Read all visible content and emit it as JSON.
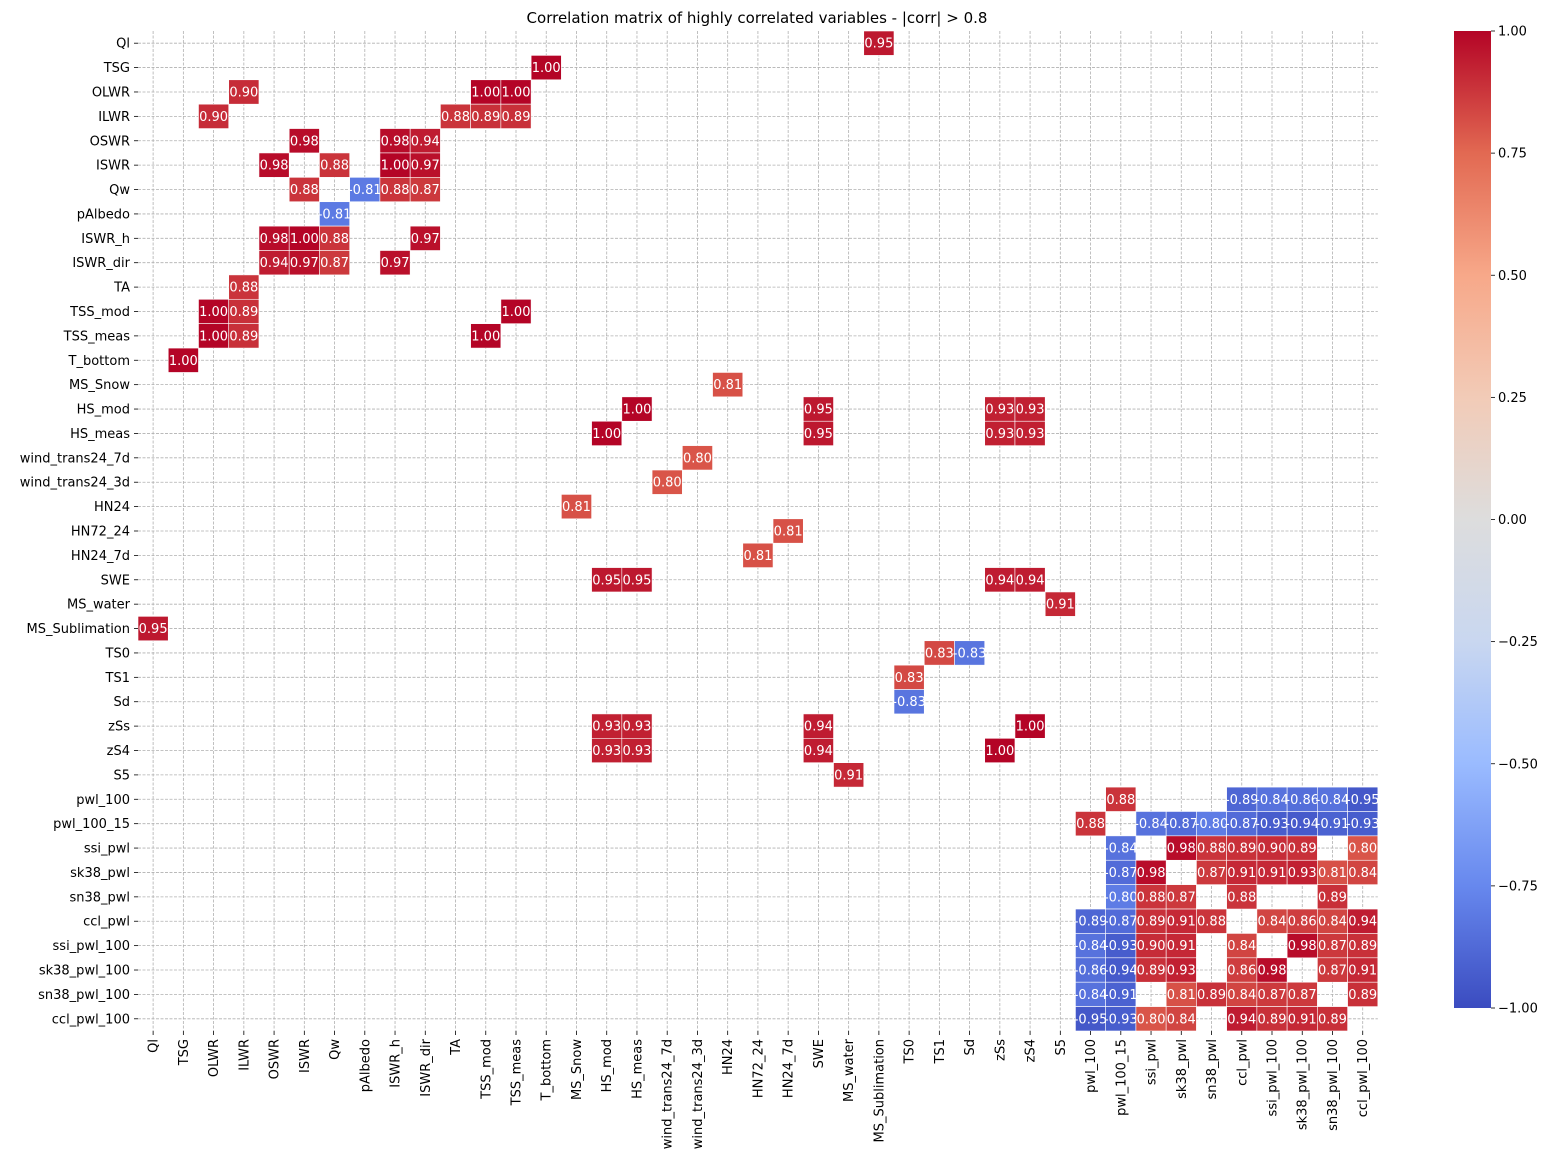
{
  "chart_data": {
    "type": "heatmap",
    "title": "Correlation matrix of highly correlated variables - |corr| > 0.8",
    "variables": [
      "Ql",
      "TSG",
      "OLWR",
      "ILWR",
      "OSWR",
      "ISWR",
      "Qw",
      "pAlbedo",
      "ISWR_h",
      "ISWR_dir",
      "TA",
      "TSS_mod",
      "TSS_meas",
      "T_bottom",
      "MS_Snow",
      "HS_mod",
      "HS_meas",
      "wind_trans24_7d",
      "wind_trans24_3d",
      "HN24",
      "HN72_24",
      "HN24_7d",
      "SWE",
      "MS_water",
      "MS_Sublimation",
      "TS0",
      "TS1",
      "Sd",
      "zSs",
      "zS4",
      "S5",
      "pwl_100",
      "pwl_100_15",
      "ssi_pwl",
      "sk38_pwl",
      "sn38_pwl",
      "ccl_pwl",
      "ssi_pwl_100",
      "sk38_pwl_100",
      "sn38_pwl_100",
      "ccl_pwl_100"
    ],
    "cells": [
      {
        "row": "Ql",
        "col": "MS_Sublimation",
        "value": 0.95,
        "label": "0.95"
      },
      {
        "row": "TSG",
        "col": "T_bottom",
        "value": 1.0,
        "label": "1.00"
      },
      {
        "row": "OLWR",
        "col": "ILWR",
        "value": 0.9,
        "label": "0.90"
      },
      {
        "row": "OLWR",
        "col": "TSS_mod",
        "value": 1.0,
        "label": "1.00"
      },
      {
        "row": "OLWR",
        "col": "TSS_meas",
        "value": 1.0,
        "label": "1.00"
      },
      {
        "row": "ILWR",
        "col": "OLWR",
        "value": 0.9,
        "label": "0.90"
      },
      {
        "row": "ILWR",
        "col": "TA",
        "value": 0.88,
        "label": "0.88"
      },
      {
        "row": "ILWR",
        "col": "TSS_mod",
        "value": 0.89,
        "label": "0.89"
      },
      {
        "row": "ILWR",
        "col": "TSS_meas",
        "value": 0.89,
        "label": "0.89"
      },
      {
        "row": "OSWR",
        "col": "ISWR",
        "value": 0.98,
        "label": "0.98"
      },
      {
        "row": "OSWR",
        "col": "ISWR_h",
        "value": 0.98,
        "label": "0.98"
      },
      {
        "row": "OSWR",
        "col": "ISWR_dir",
        "value": 0.94,
        "label": "0.94"
      },
      {
        "row": "ISWR",
        "col": "OSWR",
        "value": 0.98,
        "label": "0.98"
      },
      {
        "row": "ISWR",
        "col": "Qw",
        "value": 0.88,
        "label": "0.88"
      },
      {
        "row": "ISWR",
        "col": "ISWR_h",
        "value": 1.0,
        "label": "1.00"
      },
      {
        "row": "ISWR",
        "col": "ISWR_dir",
        "value": 0.97,
        "label": "0.97"
      },
      {
        "row": "Qw",
        "col": "ISWR",
        "value": 0.88,
        "label": "0.88"
      },
      {
        "row": "Qw",
        "col": "pAlbedo",
        "value": -0.81,
        "label": "-0.81"
      },
      {
        "row": "Qw",
        "col": "ISWR_h",
        "value": 0.88,
        "label": "0.88"
      },
      {
        "row": "Qw",
        "col": "ISWR_dir",
        "value": 0.87,
        "label": "0.87"
      },
      {
        "row": "pAlbedo",
        "col": "Qw",
        "value": -0.81,
        "label": "-0.81"
      },
      {
        "row": "ISWR_h",
        "col": "OSWR",
        "value": 0.98,
        "label": "0.98"
      },
      {
        "row": "ISWR_h",
        "col": "ISWR",
        "value": 1.0,
        "label": "1.00"
      },
      {
        "row": "ISWR_h",
        "col": "Qw",
        "value": 0.88,
        "label": "0.88"
      },
      {
        "row": "ISWR_h",
        "col": "ISWR_dir",
        "value": 0.97,
        "label": "0.97"
      },
      {
        "row": "ISWR_dir",
        "col": "OSWR",
        "value": 0.94,
        "label": "0.94"
      },
      {
        "row": "ISWR_dir",
        "col": "ISWR",
        "value": 0.97,
        "label": "0.97"
      },
      {
        "row": "ISWR_dir",
        "col": "Qw",
        "value": 0.87,
        "label": "0.87"
      },
      {
        "row": "ISWR_dir",
        "col": "ISWR_h",
        "value": 0.97,
        "label": "0.97"
      },
      {
        "row": "TA",
        "col": "ILWR",
        "value": 0.88,
        "label": "0.88"
      },
      {
        "row": "TSS_mod",
        "col": "OLWR",
        "value": 1.0,
        "label": "1.00"
      },
      {
        "row": "TSS_mod",
        "col": "ILWR",
        "value": 0.89,
        "label": "0.89"
      },
      {
        "row": "TSS_mod",
        "col": "TSS_meas",
        "value": 1.0,
        "label": "1.00"
      },
      {
        "row": "TSS_meas",
        "col": "OLWR",
        "value": 1.0,
        "label": "1.00"
      },
      {
        "row": "TSS_meas",
        "col": "ILWR",
        "value": 0.89,
        "label": "0.89"
      },
      {
        "row": "TSS_meas",
        "col": "TSS_mod",
        "value": 1.0,
        "label": "1.00"
      },
      {
        "row": "T_bottom",
        "col": "TSG",
        "value": 1.0,
        "label": "1.00"
      },
      {
        "row": "MS_Snow",
        "col": "HN24",
        "value": 0.81,
        "label": "0.81"
      },
      {
        "row": "HS_mod",
        "col": "HS_meas",
        "value": 1.0,
        "label": "1.00"
      },
      {
        "row": "HS_mod",
        "col": "SWE",
        "value": 0.95,
        "label": "0.95"
      },
      {
        "row": "HS_mod",
        "col": "zSs",
        "value": 0.93,
        "label": "0.93"
      },
      {
        "row": "HS_mod",
        "col": "zS4",
        "value": 0.93,
        "label": "0.93"
      },
      {
        "row": "HS_meas",
        "col": "HS_mod",
        "value": 1.0,
        "label": "1.00"
      },
      {
        "row": "HS_meas",
        "col": "SWE",
        "value": 0.95,
        "label": "0.95"
      },
      {
        "row": "HS_meas",
        "col": "zSs",
        "value": 0.93,
        "label": "0.93"
      },
      {
        "row": "HS_meas",
        "col": "zS4",
        "value": 0.93,
        "label": "0.93"
      },
      {
        "row": "wind_trans24_7d",
        "col": "wind_trans24_3d",
        "value": 0.8,
        "label": "0.80"
      },
      {
        "row": "wind_trans24_3d",
        "col": "wind_trans24_7d",
        "value": 0.8,
        "label": "0.80"
      },
      {
        "row": "HN24",
        "col": "MS_Snow",
        "value": 0.81,
        "label": "0.81"
      },
      {
        "row": "HN72_24",
        "col": "HN24_7d",
        "value": 0.81,
        "label": "0.81"
      },
      {
        "row": "HN24_7d",
        "col": "HN72_24",
        "value": 0.81,
        "label": "0.81"
      },
      {
        "row": "SWE",
        "col": "HS_mod",
        "value": 0.95,
        "label": "0.95"
      },
      {
        "row": "SWE",
        "col": "HS_meas",
        "value": 0.95,
        "label": "0.95"
      },
      {
        "row": "SWE",
        "col": "zSs",
        "value": 0.94,
        "label": "0.94"
      },
      {
        "row": "SWE",
        "col": "zS4",
        "value": 0.94,
        "label": "0.94"
      },
      {
        "row": "MS_water",
        "col": "S5",
        "value": 0.91,
        "label": "0.91"
      },
      {
        "row": "MS_Sublimation",
        "col": "Ql",
        "value": 0.95,
        "label": "0.95"
      },
      {
        "row": "TS0",
        "col": "TS1",
        "value": 0.83,
        "label": "0.83"
      },
      {
        "row": "TS0",
        "col": "Sd",
        "value": -0.83,
        "label": "-0.83"
      },
      {
        "row": "TS1",
        "col": "TS0",
        "value": 0.83,
        "label": "0.83"
      },
      {
        "row": "Sd",
        "col": "TS0",
        "value": -0.83,
        "label": "-0.83"
      },
      {
        "row": "zSs",
        "col": "HS_mod",
        "value": 0.93,
        "label": "0.93"
      },
      {
        "row": "zSs",
        "col": "HS_meas",
        "value": 0.93,
        "label": "0.93"
      },
      {
        "row": "zSs",
        "col": "SWE",
        "value": 0.94,
        "label": "0.94"
      },
      {
        "row": "zSs",
        "col": "zS4",
        "value": 1.0,
        "label": "1.00"
      },
      {
        "row": "zS4",
        "col": "HS_mod",
        "value": 0.93,
        "label": "0.93"
      },
      {
        "row": "zS4",
        "col": "HS_meas",
        "value": 0.93,
        "label": "0.93"
      },
      {
        "row": "zS4",
        "col": "SWE",
        "value": 0.94,
        "label": "0.94"
      },
      {
        "row": "zS4",
        "col": "zSs",
        "value": 1.0,
        "label": "1.00"
      },
      {
        "row": "S5",
        "col": "MS_water",
        "value": 0.91,
        "label": "0.91"
      },
      {
        "row": "pwl_100",
        "col": "pwl_100_15",
        "value": 0.88,
        "label": "0.88"
      },
      {
        "row": "pwl_100",
        "col": "ccl_pwl",
        "value": -0.89,
        "label": "-0.89"
      },
      {
        "row": "pwl_100",
        "col": "ssi_pwl_100",
        "value": -0.84,
        "label": "-0.84"
      },
      {
        "row": "pwl_100",
        "col": "sk38_pwl_100",
        "value": -0.86,
        "label": "-0.86"
      },
      {
        "row": "pwl_100",
        "col": "sn38_pwl_100",
        "value": -0.84,
        "label": "-0.84"
      },
      {
        "row": "pwl_100",
        "col": "ccl_pwl_100",
        "value": -0.95,
        "label": "-0.95"
      },
      {
        "row": "pwl_100_15",
        "col": "pwl_100",
        "value": 0.88,
        "label": "0.88"
      },
      {
        "row": "pwl_100_15",
        "col": "ssi_pwl",
        "value": -0.84,
        "label": "-0.84"
      },
      {
        "row": "pwl_100_15",
        "col": "sk38_pwl",
        "value": -0.87,
        "label": "-0.87"
      },
      {
        "row": "pwl_100_15",
        "col": "sn38_pwl",
        "value": -0.8,
        "label": "-0.80"
      },
      {
        "row": "pwl_100_15",
        "col": "ccl_pwl",
        "value": -0.87,
        "label": "-0.87"
      },
      {
        "row": "pwl_100_15",
        "col": "ssi_pwl_100",
        "value": -0.93,
        "label": "-0.93"
      },
      {
        "row": "pwl_100_15",
        "col": "sk38_pwl_100",
        "value": -0.94,
        "label": "-0.94"
      },
      {
        "row": "pwl_100_15",
        "col": "sn38_pwl_100",
        "value": -0.91,
        "label": "-0.91"
      },
      {
        "row": "pwl_100_15",
        "col": "ccl_pwl_100",
        "value": -0.93,
        "label": "-0.93"
      },
      {
        "row": "ssi_pwl",
        "col": "pwl_100_15",
        "value": -0.84,
        "label": "-0.84"
      },
      {
        "row": "ssi_pwl",
        "col": "sk38_pwl",
        "value": 0.98,
        "label": "0.98"
      },
      {
        "row": "ssi_pwl",
        "col": "sn38_pwl",
        "value": 0.88,
        "label": "0.88"
      },
      {
        "row": "ssi_pwl",
        "col": "ccl_pwl",
        "value": 0.89,
        "label": "0.89"
      },
      {
        "row": "ssi_pwl",
        "col": "ssi_pwl_100",
        "value": 0.9,
        "label": "0.90"
      },
      {
        "row": "ssi_pwl",
        "col": "sk38_pwl_100",
        "value": 0.89,
        "label": "0.89"
      },
      {
        "row": "ssi_pwl",
        "col": "ccl_pwl_100",
        "value": 0.8,
        "label": "0.80"
      },
      {
        "row": "sk38_pwl",
        "col": "pwl_100_15",
        "value": -0.87,
        "label": "-0.87"
      },
      {
        "row": "sk38_pwl",
        "col": "ssi_pwl",
        "value": 0.98,
        "label": "0.98"
      },
      {
        "row": "sk38_pwl",
        "col": "sn38_pwl",
        "value": 0.87,
        "label": "0.87"
      },
      {
        "row": "sk38_pwl",
        "col": "ccl_pwl",
        "value": 0.91,
        "label": "0.91"
      },
      {
        "row": "sk38_pwl",
        "col": "ssi_pwl_100",
        "value": 0.91,
        "label": "0.91"
      },
      {
        "row": "sk38_pwl",
        "col": "sk38_pwl_100",
        "value": 0.93,
        "label": "0.93"
      },
      {
        "row": "sk38_pwl",
        "col": "sn38_pwl_100",
        "value": 0.81,
        "label": "0.81"
      },
      {
        "row": "sk38_pwl",
        "col": "ccl_pwl_100",
        "value": 0.84,
        "label": "0.84"
      },
      {
        "row": "sn38_pwl",
        "col": "pwl_100_15",
        "value": -0.8,
        "label": "-0.80"
      },
      {
        "row": "sn38_pwl",
        "col": "ssi_pwl",
        "value": 0.88,
        "label": "0.88"
      },
      {
        "row": "sn38_pwl",
        "col": "sk38_pwl",
        "value": 0.87,
        "label": "0.87"
      },
      {
        "row": "sn38_pwl",
        "col": "ccl_pwl",
        "value": 0.88,
        "label": "0.88"
      },
      {
        "row": "sn38_pwl",
        "col": "sn38_pwl_100",
        "value": 0.89,
        "label": "0.89"
      },
      {
        "row": "ccl_pwl",
        "col": "pwl_100",
        "value": -0.89,
        "label": "-0.89"
      },
      {
        "row": "ccl_pwl",
        "col": "pwl_100_15",
        "value": -0.87,
        "label": "-0.87"
      },
      {
        "row": "ccl_pwl",
        "col": "ssi_pwl",
        "value": 0.89,
        "label": "0.89"
      },
      {
        "row": "ccl_pwl",
        "col": "sk38_pwl",
        "value": 0.91,
        "label": "0.91"
      },
      {
        "row": "ccl_pwl",
        "col": "sn38_pwl",
        "value": 0.88,
        "label": "0.88"
      },
      {
        "row": "ccl_pwl",
        "col": "ssi_pwl_100",
        "value": 0.84,
        "label": "0.84"
      },
      {
        "row": "ccl_pwl",
        "col": "sk38_pwl_100",
        "value": 0.86,
        "label": "0.86"
      },
      {
        "row": "ccl_pwl",
        "col": "sn38_pwl_100",
        "value": 0.84,
        "label": "0.84"
      },
      {
        "row": "ccl_pwl",
        "col": "ccl_pwl_100",
        "value": 0.94,
        "label": "0.94"
      },
      {
        "row": "ssi_pwl_100",
        "col": "pwl_100",
        "value": -0.84,
        "label": "-0.84"
      },
      {
        "row": "ssi_pwl_100",
        "col": "pwl_100_15",
        "value": -0.93,
        "label": "-0.93"
      },
      {
        "row": "ssi_pwl_100",
        "col": "ssi_pwl",
        "value": 0.9,
        "label": "0.90"
      },
      {
        "row": "ssi_pwl_100",
        "col": "sk38_pwl",
        "value": 0.91,
        "label": "0.91"
      },
      {
        "row": "ssi_pwl_100",
        "col": "ccl_pwl",
        "value": 0.84,
        "label": "0.84"
      },
      {
        "row": "ssi_pwl_100",
        "col": "sk38_pwl_100",
        "value": 0.98,
        "label": "0.98"
      },
      {
        "row": "ssi_pwl_100",
        "col": "sn38_pwl_100",
        "value": 0.87,
        "label": "0.87"
      },
      {
        "row": "ssi_pwl_100",
        "col": "ccl_pwl_100",
        "value": 0.89,
        "label": "0.89"
      },
      {
        "row": "sk38_pwl_100",
        "col": "pwl_100",
        "value": -0.86,
        "label": "-0.86"
      },
      {
        "row": "sk38_pwl_100",
        "col": "pwl_100_15",
        "value": -0.94,
        "label": "-0.94"
      },
      {
        "row": "sk38_pwl_100",
        "col": "ssi_pwl",
        "value": 0.89,
        "label": "0.89"
      },
      {
        "row": "sk38_pwl_100",
        "col": "sk38_pwl",
        "value": 0.93,
        "label": "0.93"
      },
      {
        "row": "sk38_pwl_100",
        "col": "ccl_pwl",
        "value": 0.86,
        "label": "0.86"
      },
      {
        "row": "sk38_pwl_100",
        "col": "ssi_pwl_100",
        "value": 0.98,
        "label": "0.98"
      },
      {
        "row": "sk38_pwl_100",
        "col": "sn38_pwl_100",
        "value": 0.87,
        "label": "0.87"
      },
      {
        "row": "sk38_pwl_100",
        "col": "ccl_pwl_100",
        "value": 0.91,
        "label": "0.91"
      },
      {
        "row": "sn38_pwl_100",
        "col": "pwl_100",
        "value": -0.84,
        "label": "-0.84"
      },
      {
        "row": "sn38_pwl_100",
        "col": "pwl_100_15",
        "value": -0.91,
        "label": "-0.91"
      },
      {
        "row": "sn38_pwl_100",
        "col": "sk38_pwl",
        "value": 0.81,
        "label": "0.81"
      },
      {
        "row": "sn38_pwl_100",
        "col": "sn38_pwl",
        "value": 0.89,
        "label": "0.89"
      },
      {
        "row": "sn38_pwl_100",
        "col": "ccl_pwl",
        "value": 0.84,
        "label": "0.84"
      },
      {
        "row": "sn38_pwl_100",
        "col": "ssi_pwl_100",
        "value": 0.87,
        "label": "0.87"
      },
      {
        "row": "sn38_pwl_100",
        "col": "sk38_pwl_100",
        "value": 0.87,
        "label": "0.87"
      },
      {
        "row": "sn38_pwl_100",
        "col": "ccl_pwl_100",
        "value": 0.89,
        "label": "0.89"
      },
      {
        "row": "ccl_pwl_100",
        "col": "pwl_100",
        "value": -0.95,
        "label": "-0.95"
      },
      {
        "row": "ccl_pwl_100",
        "col": "pwl_100_15",
        "value": -0.93,
        "label": "-0.93"
      },
      {
        "row": "ccl_pwl_100",
        "col": "ssi_pwl",
        "value": 0.8,
        "label": "0.80"
      },
      {
        "row": "ccl_pwl_100",
        "col": "sk38_pwl",
        "value": 0.84,
        "label": "0.84"
      },
      {
        "row": "ccl_pwl_100",
        "col": "ccl_pwl",
        "value": 0.94,
        "label": "0.94"
      },
      {
        "row": "ccl_pwl_100",
        "col": "ssi_pwl_100",
        "value": 0.89,
        "label": "0.89"
      },
      {
        "row": "ccl_pwl_100",
        "col": "sk38_pwl_100",
        "value": 0.91,
        "label": "0.91"
      },
      {
        "row": "ccl_pwl_100",
        "col": "sn38_pwl_100",
        "value": 0.89,
        "label": "0.89"
      }
    ],
    "colorbar": {
      "range": [
        -1.0,
        1.0
      ],
      "ticks": [
        1.0,
        0.75,
        0.5,
        0.25,
        0.0,
        -0.25,
        -0.5,
        -0.75,
        -1.0
      ],
      "tick_labels": [
        "1.00",
        "0.75",
        "0.50",
        "0.25",
        "0.00",
        "−0.25",
        "−0.50",
        "−0.75",
        "−1.00"
      ],
      "colormap": "coolwarm",
      "colormap_stops": [
        "#3b4cc0",
        "#6788ee",
        "#9abbff",
        "#c9d7f0",
        "#dddddd",
        "#f2cbb7",
        "#f7a889",
        "#e26952",
        "#b40426"
      ]
    },
    "grid": true,
    "grid_color": "#b0b0b0"
  }
}
